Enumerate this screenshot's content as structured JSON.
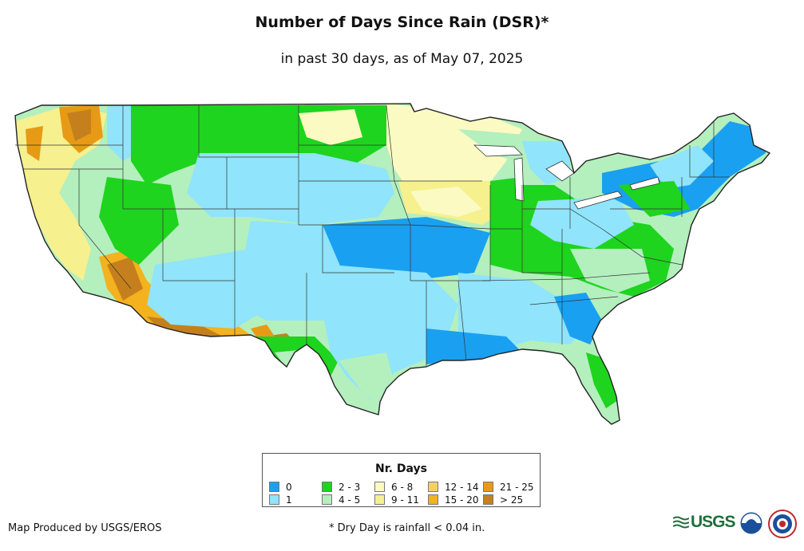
{
  "title": "Number of Days Since Rain (DSR)*",
  "subtitle": "in past 30 days, as of May 07, 2025",
  "legend": {
    "title": "Nr. Days",
    "items": [
      {
        "label": "0",
        "color": "#1aa0f0"
      },
      {
        "label": "1",
        "color": "#90e4fb"
      },
      {
        "label": "2 - 3",
        "color": "#1ed41e"
      },
      {
        "label": "4 - 5",
        "color": "#b4efbe"
      },
      {
        "label": "6 - 8",
        "color": "#fafac2"
      },
      {
        "label": "9 - 11",
        "color": "#f6f08e"
      },
      {
        "label": "12 - 14",
        "color": "#f7d065"
      },
      {
        "label": "15 - 20",
        "color": "#f3b21e"
      },
      {
        "label": "21 - 25",
        "color": "#e79a15"
      },
      {
        "label": "> 25",
        "color": "#c5801d"
      }
    ]
  },
  "credit": "Map Produced by USGS/EROS",
  "footnote": "* Dry Day is rainfall < 0.04 in.",
  "logos": {
    "usgs": "USGS",
    "usgs_icon": "usgs-wave-icon",
    "noaa_icon": "noaa-emblem-icon",
    "nws_icon": "nws-emblem-icon"
  }
}
